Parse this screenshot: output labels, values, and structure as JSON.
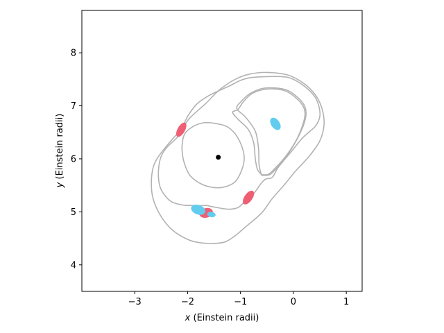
{
  "chart_data": {
    "type": "scatter",
    "title": "",
    "xlabel": {
      "var": "x",
      "rest": " (Einstein radii)"
    },
    "ylabel": {
      "var": "y",
      "rest": " (Einstein radii)"
    },
    "xlim": [
      -4.0,
      1.3
    ],
    "ylim": [
      3.5,
      8.8
    ],
    "xticks": [
      -3,
      -2,
      -1,
      0,
      1
    ],
    "yticks": [
      4,
      5,
      6,
      7,
      8
    ],
    "grid": false,
    "colors": {
      "contour": "#b2b2b2",
      "image_a": "#ee5f74",
      "image_b": "#62ccef",
      "lens": "#000000"
    },
    "lens_center": {
      "x": -1.42,
      "y": 6.03
    },
    "curves": [
      {
        "name": "critical-curve-inner",
        "points": [
          [
            -1.64,
            5.12
          ],
          [
            -1.44,
            5.08
          ],
          [
            -1.22,
            5.05
          ],
          [
            -1.05,
            5.08
          ],
          [
            -0.93,
            5.18
          ],
          [
            -0.8,
            5.28
          ],
          [
            -0.7,
            5.41
          ],
          [
            -0.6,
            5.55
          ],
          [
            -0.52,
            5.62
          ],
          [
            -0.4,
            5.65
          ],
          [
            -0.3,
            5.82
          ],
          [
            -0.18,
            5.97
          ],
          [
            -0.02,
            6.16
          ],
          [
            0.15,
            6.37
          ],
          [
            0.3,
            6.51
          ],
          [
            0.42,
            6.62
          ],
          [
            0.5,
            6.8
          ],
          [
            0.48,
            7.0
          ],
          [
            0.4,
            7.18
          ],
          [
            0.22,
            7.36
          ],
          [
            0.0,
            7.5
          ],
          [
            -0.2,
            7.55
          ],
          [
            -0.55,
            7.55
          ],
          [
            -0.82,
            7.53
          ],
          [
            -1.0,
            7.48
          ],
          [
            -1.2,
            7.38
          ],
          [
            -1.42,
            7.28
          ],
          [
            -1.62,
            7.18
          ],
          [
            -1.82,
            7.04
          ],
          [
            -1.97,
            6.85
          ],
          [
            -2.05,
            6.7
          ],
          [
            -2.1,
            6.53
          ],
          [
            -2.22,
            6.38
          ],
          [
            -2.38,
            6.23
          ],
          [
            -2.5,
            6.05
          ],
          [
            -2.55,
            5.8
          ],
          [
            -2.54,
            5.55
          ],
          [
            -2.48,
            5.38
          ],
          [
            -2.32,
            5.2
          ],
          [
            -2.1,
            5.13
          ],
          [
            -1.85,
            5.12
          ],
          [
            -1.64,
            5.12
          ]
        ]
      },
      {
        "name": "critical-curve-outer",
        "points": [
          [
            -1.55,
            4.4
          ],
          [
            -1.3,
            4.43
          ],
          [
            -1.1,
            4.55
          ],
          [
            -0.9,
            4.72
          ],
          [
            -0.6,
            4.98
          ],
          [
            -0.4,
            5.25
          ],
          [
            -0.18,
            5.5
          ],
          [
            0.05,
            5.78
          ],
          [
            0.3,
            6.05
          ],
          [
            0.5,
            6.34
          ],
          [
            0.58,
            6.65
          ],
          [
            0.54,
            6.95
          ],
          [
            0.42,
            7.2
          ],
          [
            0.2,
            7.42
          ],
          [
            -0.1,
            7.58
          ],
          [
            -0.5,
            7.63
          ],
          [
            -0.82,
            7.6
          ],
          [
            -1.1,
            7.5
          ],
          [
            -1.4,
            7.3
          ],
          [
            -1.65,
            7.05
          ],
          [
            -1.95,
            6.78
          ],
          [
            -2.1,
            6.58
          ],
          [
            -2.35,
            6.3
          ],
          [
            -2.58,
            6.0
          ],
          [
            -2.67,
            5.75
          ],
          [
            -2.68,
            5.4
          ],
          [
            -2.62,
            5.15
          ],
          [
            -2.48,
            4.88
          ],
          [
            -2.28,
            4.65
          ],
          [
            -2.0,
            4.48
          ],
          [
            -1.78,
            4.42
          ],
          [
            -1.55,
            4.4
          ]
        ]
      },
      {
        "name": "caustic-inner-loop",
        "points": [
          [
            -1.55,
            6.68
          ],
          [
            -1.28,
            6.62
          ],
          [
            -1.1,
            6.47
          ],
          [
            -0.97,
            6.22
          ],
          [
            -0.93,
            6.0
          ],
          [
            -0.98,
            5.78
          ],
          [
            -1.1,
            5.57
          ],
          [
            -1.3,
            5.47
          ],
          [
            -1.52,
            5.46
          ],
          [
            -1.75,
            5.53
          ],
          [
            -1.95,
            5.68
          ],
          [
            -2.05,
            5.88
          ],
          [
            -2.1,
            6.1
          ],
          [
            -2.1,
            6.3
          ],
          [
            -2.05,
            6.48
          ],
          [
            -1.88,
            6.62
          ],
          [
            -1.7,
            6.68
          ],
          [
            -1.55,
            6.68
          ]
        ]
      },
      {
        "name": "caustic-right-loop",
        "points": [
          [
            -0.6,
            5.7
          ],
          [
            -0.47,
            5.71
          ],
          [
            -0.35,
            5.82
          ],
          [
            -0.2,
            5.98
          ],
          [
            -0.05,
            6.18
          ],
          [
            0.08,
            6.4
          ],
          [
            0.18,
            6.65
          ],
          [
            0.22,
            6.85
          ],
          [
            0.18,
            7.0
          ],
          [
            0.05,
            7.15
          ],
          [
            -0.15,
            7.28
          ],
          [
            -0.4,
            7.32
          ],
          [
            -0.6,
            7.3
          ],
          [
            -0.8,
            7.22
          ],
          [
            -0.95,
            7.07
          ],
          [
            -1.05,
            6.93
          ],
          [
            -1.15,
            6.88
          ],
          [
            -1.05,
            6.75
          ],
          [
            -0.85,
            6.55
          ],
          [
            -0.75,
            6.3
          ],
          [
            -0.72,
            6.0
          ],
          [
            -0.68,
            5.8
          ],
          [
            -0.6,
            5.7
          ]
        ]
      },
      {
        "name": "caustic-right-loop-2",
        "points": [
          [
            -0.6,
            5.69
          ],
          [
            -0.45,
            5.7
          ],
          [
            -0.32,
            5.82
          ],
          [
            -0.17,
            6.0
          ],
          [
            -0.03,
            6.2
          ],
          [
            0.1,
            6.43
          ],
          [
            0.2,
            6.66
          ],
          [
            0.24,
            6.86
          ],
          [
            0.2,
            7.02
          ],
          [
            0.07,
            7.17
          ],
          [
            -0.13,
            7.3
          ],
          [
            -0.4,
            7.34
          ],
          [
            -0.62,
            7.32
          ],
          [
            -0.82,
            7.23
          ],
          [
            -0.98,
            7.09
          ],
          [
            -1.07,
            6.95
          ],
          [
            -0.9,
            6.78
          ],
          [
            -0.72,
            6.52
          ],
          [
            -0.66,
            6.2
          ],
          [
            -0.65,
            5.9
          ],
          [
            -0.62,
            5.75
          ],
          [
            -0.6,
            5.69
          ]
        ]
      }
    ],
    "images": [
      {
        "name": "image-a",
        "group": "a",
        "x": -2.12,
        "y": 6.55,
        "rx": 0.15,
        "ry": 0.07,
        "angle": -60
      },
      {
        "name": "image-a",
        "group": "a",
        "x": -0.85,
        "y": 5.27,
        "rx": 0.15,
        "ry": 0.075,
        "angle": -55
      },
      {
        "name": "image-a",
        "group": "a",
        "x": -1.65,
        "y": 4.98,
        "rx": 0.13,
        "ry": 0.09,
        "angle": -15
      },
      {
        "name": "image-b",
        "group": "b",
        "x": -0.34,
        "y": 6.66,
        "rx": 0.13,
        "ry": 0.08,
        "angle": 55
      },
      {
        "name": "image-b",
        "group": "b",
        "x": -1.8,
        "y": 5.04,
        "rx": 0.14,
        "ry": 0.09,
        "angle": 20
      },
      {
        "name": "image-b",
        "group": "b",
        "x": -1.55,
        "y": 4.95,
        "rx": 0.08,
        "ry": 0.05,
        "angle": 10
      }
    ]
  }
}
